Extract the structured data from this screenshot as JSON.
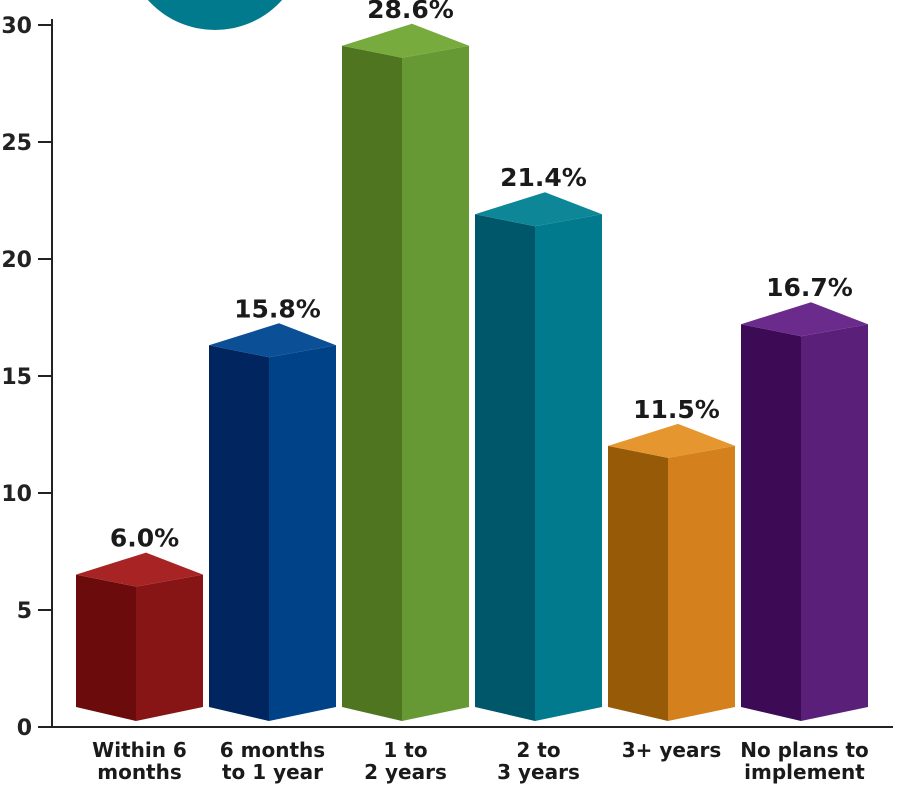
{
  "chart_data": {
    "type": "bar",
    "title": "",
    "xlabel": "",
    "ylabel": "",
    "ylim": [
      0,
      30
    ],
    "yticks": [
      0,
      5,
      10,
      15,
      20,
      25,
      30
    ],
    "grid": false,
    "style": "3d",
    "categories": [
      [
        "Within 6",
        "months"
      ],
      [
        "6 months",
        "to 1 year"
      ],
      [
        "1 to",
        "2 years"
      ],
      [
        "2 to",
        "3 years"
      ],
      [
        "3+ years"
      ],
      [
        "No plans to",
        "implement"
      ]
    ],
    "values": [
      6.0,
      15.8,
      28.6,
      21.4,
      11.5,
      16.7
    ],
    "data_labels": [
      "6.0%",
      "15.8%",
      "28.6%",
      "21.4%",
      "11.5%",
      "16.7%"
    ],
    "colors": {
      "front": [
        "#881515",
        "#004287",
        "#669933",
        "#007a8c",
        "#d4801c",
        "#5a2079"
      ],
      "side": [
        "#6c0b0b",
        "#00255f",
        "#4f7520",
        "#005769",
        "#975a06",
        "#3d0b55"
      ],
      "top": [
        "#a82424",
        "#0b4f96",
        "#78ab3e",
        "#0d8798",
        "#e6962f",
        "#6b2b8d"
      ],
      "badge": "#007a8c"
    }
  }
}
